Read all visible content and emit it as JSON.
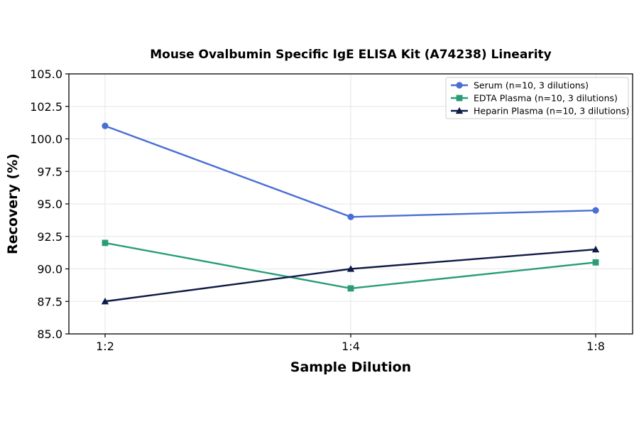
{
  "chart_data": {
    "type": "line",
    "title": "Mouse Ovalbumin Specific IgE ELISA Kit (A74238) Linearity",
    "xlabel": "Sample Dilution",
    "ylabel": "Recovery (%)",
    "categories": [
      "1:2",
      "1:4",
      "1:8"
    ],
    "ylim": [
      85.0,
      105.0
    ],
    "yticks": [
      "85.0",
      "87.5",
      "90.0",
      "92.5",
      "95.0",
      "97.5",
      "100.0",
      "102.5",
      "105.0"
    ],
    "grid": true,
    "legend_position": "top-right",
    "series": [
      {
        "name": "Serum (n=10, 3 dilutions)",
        "values": [
          101.0,
          94.0,
          94.5
        ],
        "color": "#4a6fd4",
        "marker": "circle"
      },
      {
        "name": "EDTA Plasma (n=10, 3 dilutions)",
        "values": [
          92.0,
          88.5,
          90.5
        ],
        "color": "#2a9d78",
        "marker": "square"
      },
      {
        "name": "Heparin Plasma (n=10, 3 dilutions)",
        "values": [
          87.5,
          90.0,
          91.5
        ],
        "color": "#0f1b47",
        "marker": "triangle"
      }
    ]
  }
}
